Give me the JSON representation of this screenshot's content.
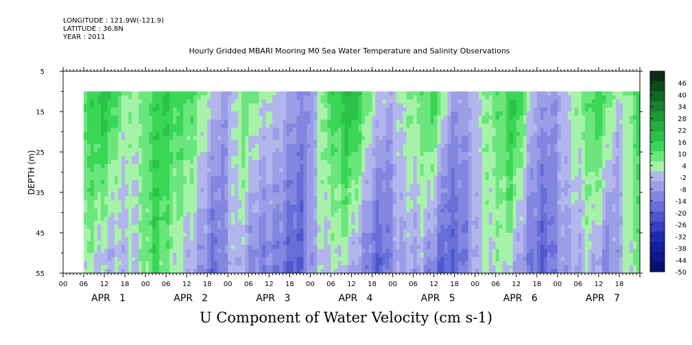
{
  "header": {
    "longitude": "LONGITUDE : 121.9W(-121.9)",
    "latitude": "LATITUDE : 36.8N",
    "year": "YEAR : 2011"
  },
  "chart_data": {
    "type": "heatmap",
    "title": "Hourly Gridded MBARI Mooring M0 Sea Water Temperature and Salinity Observations",
    "xlabel": "U Component of Water Velocity (cm s-1)",
    "ylabel": "DEPTH (m)",
    "ylim": [
      55,
      5
    ],
    "y_ticks": [
      5,
      15,
      25,
      35,
      45,
      55
    ],
    "y_tick_labels": [
      "5",
      "15",
      "25",
      "35",
      "45",
      "55"
    ],
    "x_hour_tick_labels": [
      "00",
      "06",
      "12",
      "18",
      "00",
      "06",
      "12",
      "18",
      "00",
      "06",
      "12",
      "18",
      "00",
      "06",
      "12",
      "18",
      "00",
      "06",
      "12",
      "18",
      "00",
      "06",
      "12",
      "18",
      "00",
      "06",
      "12",
      "18"
    ],
    "x_day_labels": [
      "APR   1",
      "APR   2",
      "APR   3",
      "APR   4",
      "APR   5",
      "APR   6",
      "APR   7"
    ],
    "data_start_hour": 6,
    "data_end_hour": 168,
    "data_depth_range": [
      10,
      55
    ],
    "colorbar": {
      "labels": [
        "46",
        "40",
        "34",
        "28",
        "22",
        "16",
        "10",
        "4",
        "-2",
        "-8",
        "-14",
        "-20",
        "-26",
        "-32",
        "-38",
        "-44",
        "-50"
      ],
      "range": [
        -50,
        52
      ],
      "colors": [
        "#0a2e12",
        "#0e4a1c",
        "#146624",
        "#1a802e",
        "#1f9838",
        "#25ae40",
        "#2cc24a",
        "#3ad656",
        "#6ae67c",
        "#a6f2a8",
        "#b2b6ec",
        "#9b9ee6",
        "#8286e0",
        "#686ed8",
        "#4e56ce",
        "#343fc2",
        "#1f2ab2",
        "#12209e",
        "#0c1888",
        "#081070"
      ]
    },
    "field_description_points": {
      "depths": [
        10,
        20,
        30,
        40,
        50,
        55
      ],
      "hours": [
        6,
        12,
        18,
        24,
        30,
        36,
        42,
        48,
        54,
        60,
        66,
        72,
        78,
        84,
        90,
        96,
        102,
        108,
        114,
        120,
        126,
        132,
        138,
        144,
        150,
        156,
        162,
        168
      ],
      "u_surface": [
        12,
        20,
        6,
        8,
        18,
        12,
        4,
        -6,
        10,
        2,
        -4,
        -10,
        14,
        22,
        6,
        -4,
        8,
        14,
        -6,
        -2,
        10,
        18,
        -4,
        -8,
        8,
        14,
        2,
        12
      ],
      "u_deep": [
        8,
        4,
        -6,
        2,
        10,
        6,
        -8,
        -14,
        -4,
        -10,
        -16,
        -18,
        -6,
        4,
        -10,
        -18,
        -8,
        -2,
        -22,
        -14,
        -2,
        6,
        -12,
        -18,
        -10,
        2,
        -14,
        4
      ]
    }
  }
}
